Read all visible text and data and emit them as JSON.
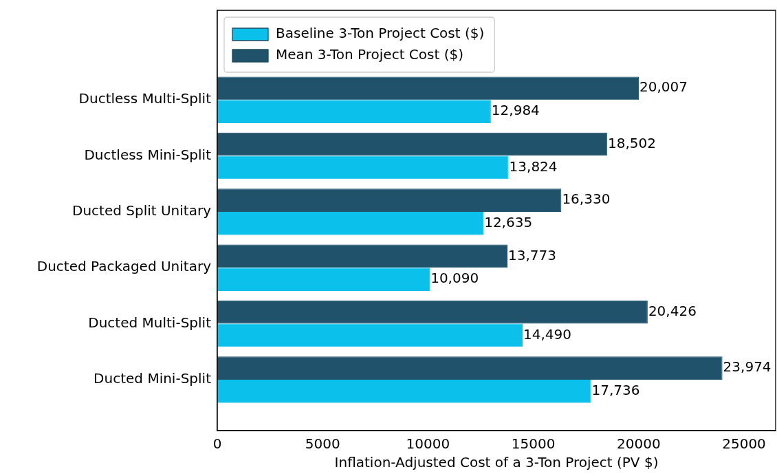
{
  "chart_data": {
    "type": "bar",
    "orientation": "horizontal",
    "xlabel": "Inflation-Adjusted Cost of a 3-Ton Project (PV $)",
    "categories": [
      "Ductless Multi-Split",
      "Ductless Mini-Split",
      "Ducted Split Unitary",
      "Ducted Packaged Unitary",
      "Ducted Multi-Split",
      "Ducted Mini-Split"
    ],
    "series": [
      {
        "name": "Baseline 3-Ton Project Cost ($)",
        "color": "#0bc1ec",
        "values": [
          12984,
          13824,
          12635,
          10090,
          14490,
          17736
        ],
        "value_labels": [
          "12,984",
          "13,824",
          "12,635",
          "10,090",
          "14,490",
          "17,736"
        ]
      },
      {
        "name": "Mean 3-Ton Project Cost ($)",
        "color": "#20536b",
        "values": [
          20007,
          18502,
          16330,
          13773,
          20426,
          23974
        ],
        "value_labels": [
          "20,007",
          "18,502",
          "16,330",
          "13,773",
          "20,426",
          "23,974"
        ]
      }
    ],
    "xlim": [
      0,
      26500
    ],
    "xticks": [
      0,
      5000,
      10000,
      15000,
      20000,
      25000
    ],
    "grid": false,
    "legend": "top left"
  }
}
